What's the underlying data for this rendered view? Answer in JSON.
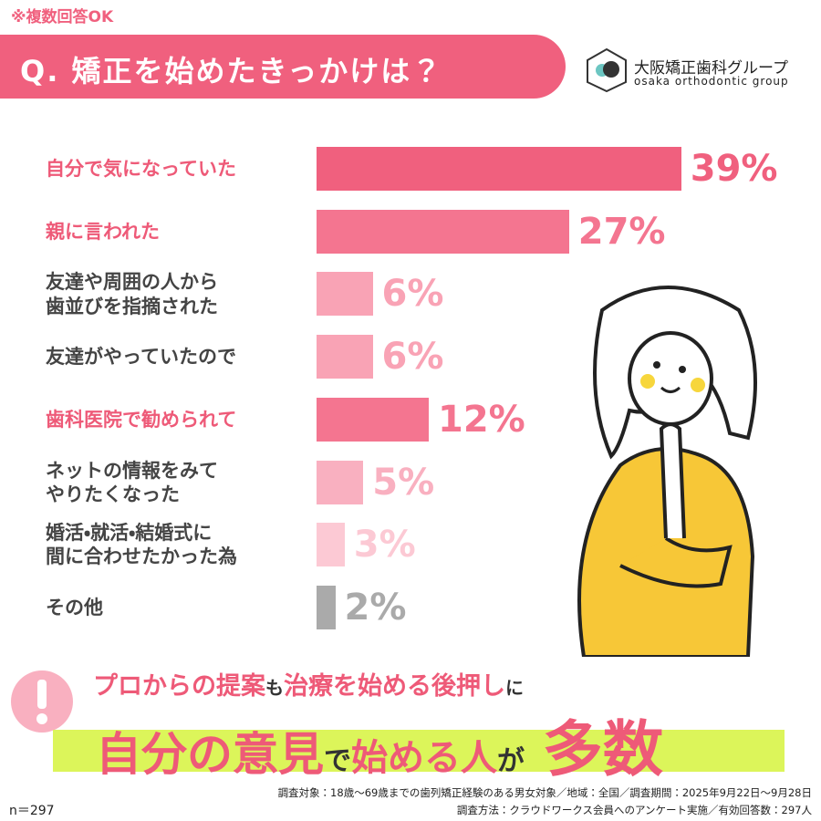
{
  "note": "※複数回答OK",
  "logo": {
    "name": "大阪矯正歯科グループ",
    "sub": "osaka orthodontic group"
  },
  "chart_data": {
    "type": "hbar",
    "title": "Q. 矯正を始めたきっかけは？",
    "categories": [
      "自分で気になっていた",
      "親に言われた",
      "友達や周囲の人から\n歯並びを指摘された",
      "友達がやっていたので",
      "歯科医院で勧められて",
      "ネットの情報をみて\nやりたくなった",
      "婚活・就活・結婚式に\n間に合わせたかった為",
      "その他"
    ],
    "values": [
      39,
      27,
      6,
      6,
      12,
      5,
      3,
      2
    ],
    "value_labels": [
      "39%",
      "27%",
      "6%",
      "6%",
      "12%",
      "5%",
      "3%",
      "2%"
    ],
    "colors": [
      "#f0607e",
      "#f47590",
      "#f9a3b5",
      "#f9a3b5",
      "#f47590",
      "#f9b0c0",
      "#fcc9d4",
      "#aaaaaa"
    ],
    "category_colors": [
      "#ee5a78",
      "#ee5a78",
      "#444444",
      "#444444",
      "#ee5a78",
      "#444444",
      "#444444",
      "#444444"
    ]
  },
  "headline": {
    "line1": [
      "プロからの提案",
      "も",
      "治療を始める後押し",
      "に"
    ],
    "line2": [
      "自分の意見",
      "で",
      "始める人",
      "が",
      "多数"
    ]
  },
  "footer": {
    "n": "n＝297",
    "lines": [
      "調査対象：18歳～69歳までの歯列矯正経験のある男女対象／地域：全国／調査期間：2025年9月22日～9月28日",
      "調査方法：クラウドワークス会員へのアンケート実施／有効回答数：297人"
    ]
  }
}
